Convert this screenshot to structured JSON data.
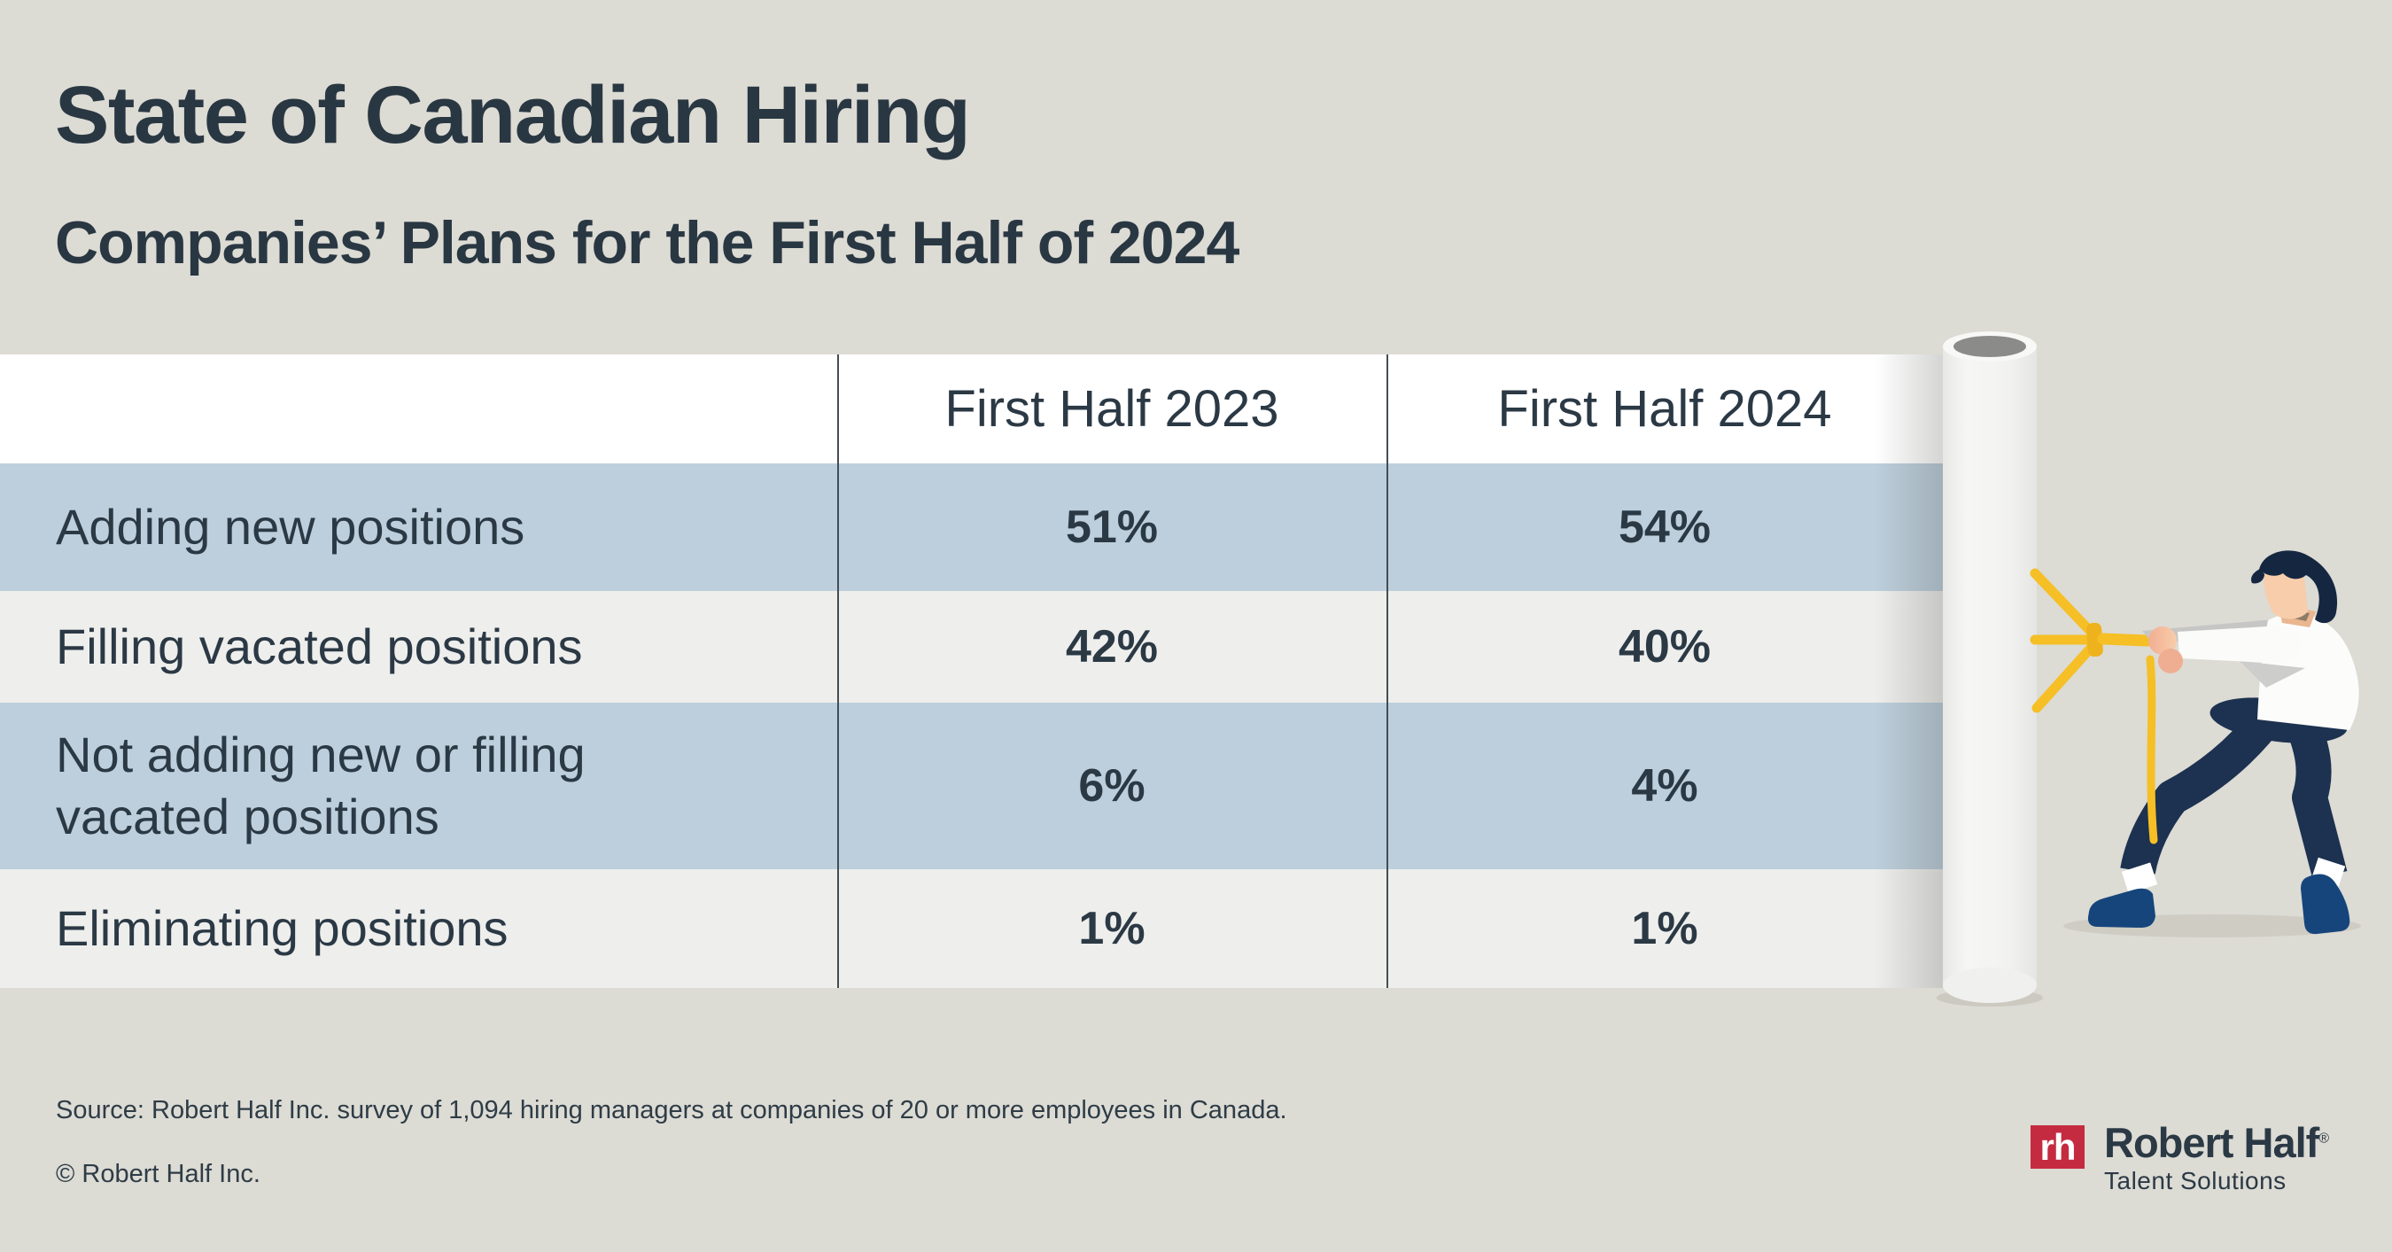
{
  "header": {
    "title": "State of Canadian Hiring",
    "subtitle": "Companies’ Plans for the First Half of 2024"
  },
  "chart_data": {
    "type": "table",
    "title": "State of Canadian Hiring",
    "subtitle": "Companies’ Plans for the First Half of 2024",
    "columns": [
      "",
      "First Half 2023",
      "First Half 2024"
    ],
    "rows": [
      [
        "Adding new positions",
        "51%",
        "54%"
      ],
      [
        "Filling vacated positions",
        "42%",
        "40%"
      ],
      [
        "Not adding new or filling vacated positions",
        "6%",
        "4%"
      ],
      [
        "Eliminating positions",
        "1%",
        "1%"
      ]
    ],
    "row_shading": [
      "blue",
      "gray",
      "blue",
      "gray"
    ],
    "layout": {
      "header_background": "#ffffff",
      "grid": "two dark vertical divider lines",
      "legend": "none"
    }
  },
  "footer": {
    "source": "Source: Robert Half Inc. survey of 1,094 hiring managers at companies of 20 or more employees in Canada.",
    "copyright": "© Robert Half Inc."
  },
  "logo": {
    "mark": "rh",
    "brand": "Robert Half",
    "registered": "®",
    "tagline": "Talent Solutions"
  },
  "illustration": {
    "name": "person-pulling-rope-unrolling-paper-roll"
  },
  "colors": {
    "background": "#dcdbd4",
    "row_blue": "#bdcfdc",
    "row_gray": "#eeeeec",
    "header_row": "#ffffff",
    "text_dark": "#2b3945",
    "divider": "#434d54",
    "rope_yellow": "#f5bf25",
    "logo_red": "#c52b40",
    "pants_navy": "#1d3150",
    "hair_navy": "#152740"
  }
}
